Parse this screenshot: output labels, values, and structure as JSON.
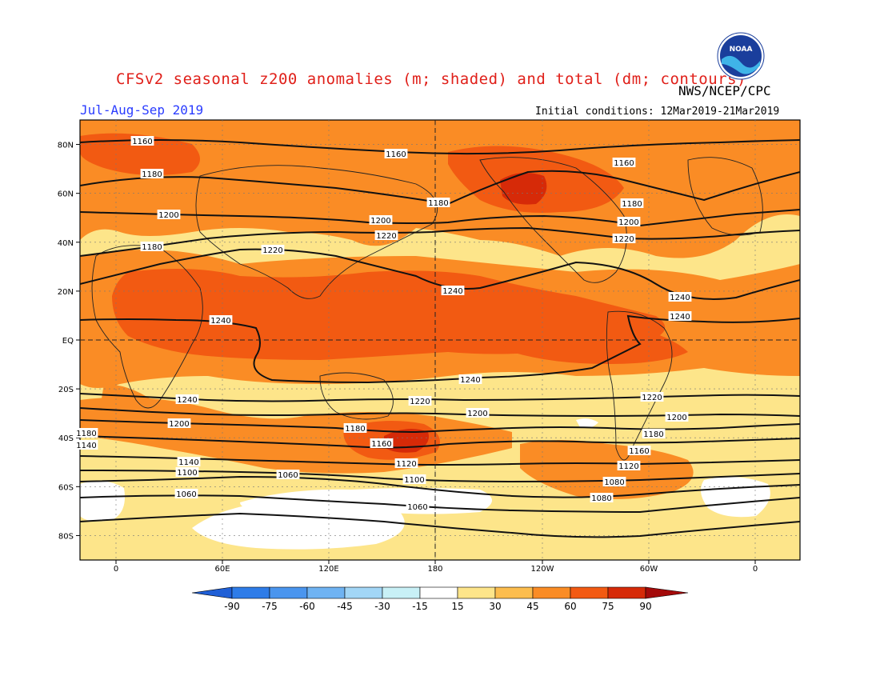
{
  "header": {
    "title": "CFSv2 seasonal z200 anomalies (m; shaded) and total (dm; contours)",
    "agency": "NWS/NCEP/CPC",
    "period": "Jul-Aug-Sep 2019",
    "initial_conditions": "Initial conditions: 12Mar2019-21Mar2019",
    "logo_text": "NOAA"
  },
  "map": {
    "projection": "cylindrical equidistant",
    "lat_range": [
      -90,
      90
    ],
    "lon_center": 180,
    "lat_labels": [
      "80N",
      "60N",
      "40N",
      "20N",
      "EQ",
      "20S",
      "40S",
      "60S",
      "80S"
    ],
    "lon_labels": [
      "0",
      "60E",
      "120E",
      "180",
      "120W",
      "60W",
      "0"
    ],
    "contour_labels": [
      "1160",
      "1160",
      "1180",
      "1160",
      "1180",
      "1180",
      "1200",
      "1200",
      "1180",
      "1200",
      "1220",
      "1220",
      "1220",
      "1240",
      "1240",
      "1240",
      "1240",
      "1240",
      "1240",
      "1220",
      "1220",
      "1200",
      "1200",
      "1200",
      "1180",
      "1180",
      "1180",
      "1160",
      "1160",
      "1140",
      "1140",
      "1120",
      "1120",
      "1100",
      "1100",
      "1080",
      "1060",
      "1080",
      "1060",
      "1060"
    ]
  },
  "colorbar": {
    "ticks": [
      "-90",
      "-75",
      "-60",
      "-45",
      "-30",
      "-15",
      "15",
      "30",
      "45",
      "60",
      "75",
      "90"
    ],
    "colors": [
      "#1f5fd6",
      "#2e7ce8",
      "#4a95ee",
      "#6fb3f2",
      "#a2d6f6",
      "#c8f0f6",
      "#ffffff",
      "#fde58a",
      "#fcbd4e",
      "#fa8c25",
      "#f25a12",
      "#d62a08",
      "#a40a0a"
    ]
  }
}
